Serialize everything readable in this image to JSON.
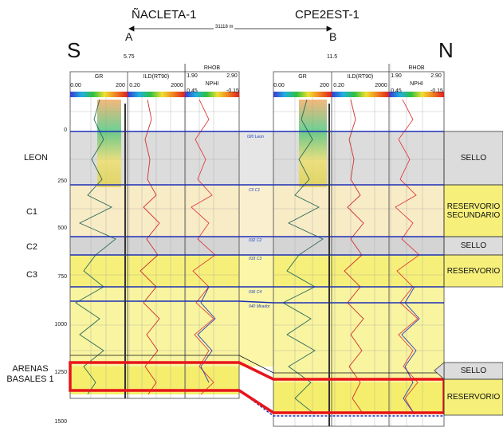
{
  "wells": [
    {
      "name": "ÑACLETA-1",
      "marker": "A",
      "elevation": "5.75"
    },
    {
      "name": "CPE2EST-1",
      "marker": "B",
      "elevation": "11.5"
    }
  ],
  "distance": "31118 m",
  "directions": {
    "left": "S",
    "right": "N"
  },
  "track_headers": {
    "gr": {
      "name": "GR",
      "min": "0.00",
      "max": "200"
    },
    "ild": {
      "name": "ILD(RT90)",
      "min": "0.20",
      "max": "2000"
    },
    "rhob": {
      "name": "RHOB",
      "min": "1.90",
      "max": "2.90"
    },
    "nphi": {
      "name": "NPHI",
      "min": "0.45",
      "max": "-0.15"
    }
  },
  "depth_ticks": [
    "0",
    "250",
    "500",
    "750",
    "1000",
    "1250",
    "1500"
  ],
  "zones_left": [
    "LEON",
    "C1",
    "C2",
    "C3",
    "ARENAS BASALES 1"
  ],
  "zones_right": [
    "SELLO",
    "RESERVORIO SECUNDARIO",
    "SELLO",
    "RESERVORIO",
    "SELLO",
    "RESERVORIO"
  ],
  "horizon_labels": [
    "020 Leon",
    "C0 C1",
    "032 C2",
    "033 C3",
    "036 C4",
    "040 Mirador"
  ],
  "colors": {
    "highlight": "#e8141a",
    "horizon": "#1d2fb5",
    "seal": "#d9d9d9",
    "reservoir": "#f6f07a",
    "secondary": "#f8e6b8"
  }
}
